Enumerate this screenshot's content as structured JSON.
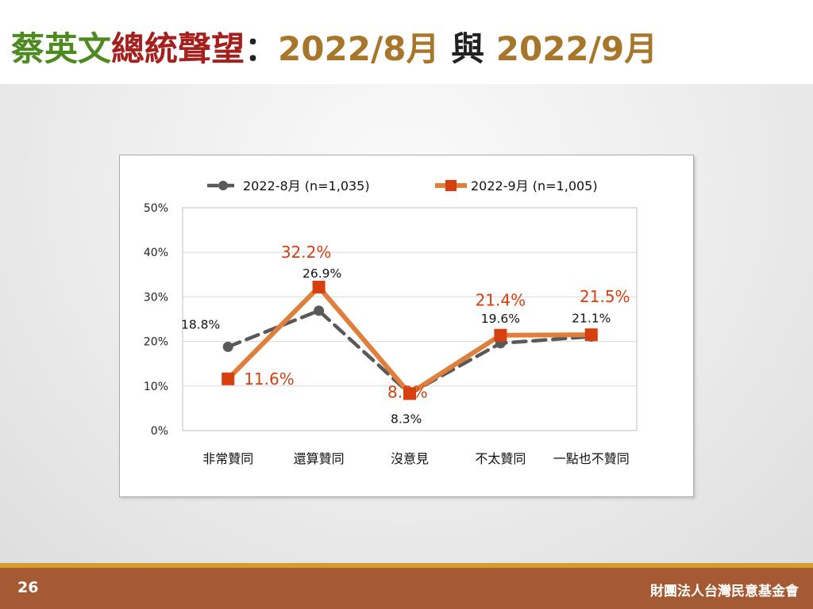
{
  "title": {
    "part1": "蔡英文",
    "part2": "總統聲望",
    "part3": "：",
    "part4": "2022/8月",
    "part5": " 與 ",
    "part6": "2022/9月"
  },
  "footer": {
    "page_number": "26",
    "organization": "財團法人台灣民意基金會"
  },
  "colors": {
    "series1": "#595959",
    "series2": "#e07e3c",
    "series2_marker": "#d6400f",
    "series2_label": "#d6400f",
    "title_green": "#4d8a1f",
    "title_red": "#a5201c",
    "title_gold": "#a8762a"
  },
  "chart_data": {
    "type": "line",
    "categories": [
      "非常贊同",
      "還算贊同",
      "沒意見",
      "不太贊同",
      "一點也不贊同"
    ],
    "yticks": [
      "0%",
      "10%",
      "20%",
      "30%",
      "40%",
      "50%"
    ],
    "ylim": [
      0,
      50
    ],
    "grid": true,
    "legend_position": "top",
    "series": [
      {
        "name": "2022-8月  (n=1,035)",
        "values": [
          18.8,
          26.9,
          8.3,
          19.6,
          21.1
        ],
        "labels": [
          "18.8%",
          "26.9%",
          "8.3%",
          "19.6%",
          "21.1%"
        ],
        "style": "dashed",
        "marker": "circle"
      },
      {
        "name": "2022-9月  (n=1,005)",
        "values": [
          11.6,
          32.2,
          8.3,
          21.4,
          21.5
        ],
        "labels": [
          "11.6%",
          "32.2%",
          "8.3%",
          "21.4%",
          "21.5%"
        ],
        "style": "solid",
        "marker": "square"
      }
    ]
  }
}
